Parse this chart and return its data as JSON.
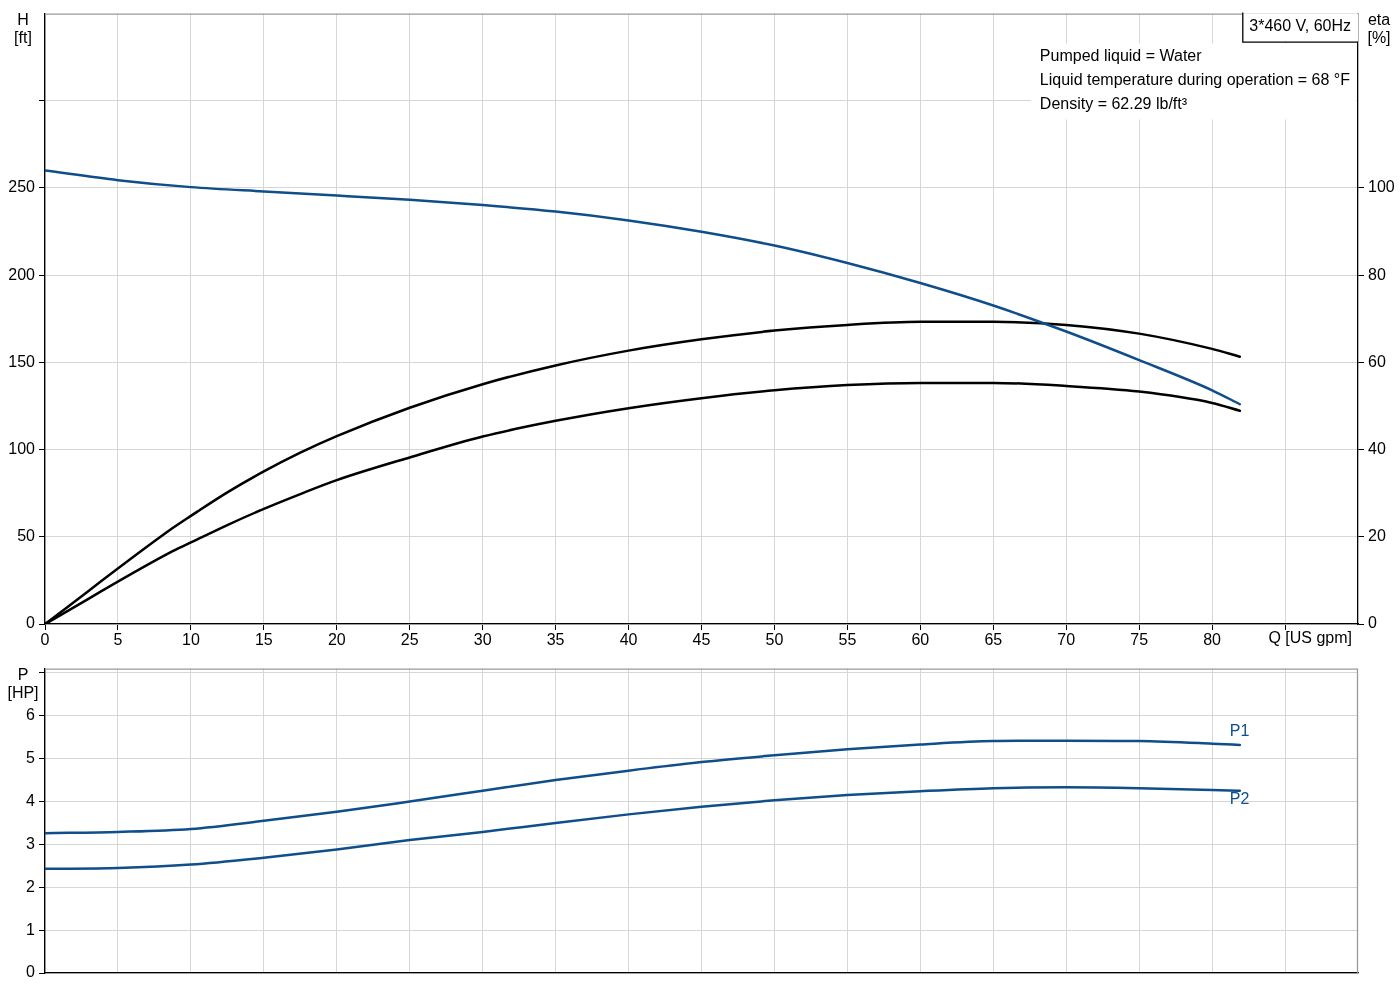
{
  "chart_data": [
    {
      "type": "line",
      "title": "3*460 V, 60Hz",
      "xlabel": "Q [US gpm]",
      "ylabel": "H [ft]",
      "y2label": "eta [%]",
      "annotations": [
        "Pumped liquid = Water",
        "Liquid temperature during operation = 68 °F",
        "Density = 62.29 lb/ft³"
      ],
      "xlim": [
        0,
        90
      ],
      "xticks": [
        0,
        5,
        10,
        15,
        20,
        25,
        30,
        35,
        40,
        45,
        50,
        55,
        60,
        65,
        70,
        75,
        80,
        {
          "value": 85,
          "label": null
        }
      ],
      "ylim": [
        0,
        350
      ],
      "yticks": [
        0,
        50,
        100,
        150,
        200,
        250,
        {
          "value": 300,
          "label": null
        }
      ],
      "y2lim": [
        0,
        140
      ],
      "y2ticks": [
        0,
        20,
        40,
        60,
        80,
        100
      ],
      "grid": true,
      "legend": false,
      "marker": "none",
      "series": [
        {
          "color": "#0f4e8a",
          "x": [
            0,
            5,
            10,
            15,
            20,
            25,
            30,
            35,
            40,
            45,
            50,
            55,
            60,
            65,
            70,
            75,
            80,
            81.9
          ],
          "values": [
            260,
            254.5,
            250.5,
            248,
            245.7,
            243.2,
            240.2,
            236.5,
            231.4,
            224.9,
            217,
            207,
            195.5,
            182.6,
            167.7,
            151.3,
            134,
            126
          ]
        },
        {
          "color": "#000000",
          "axis": "y2",
          "x": [
            0,
            8.75,
            10,
            12.5,
            15,
            17.5,
            20,
            25,
            30,
            35,
            40,
            45,
            50,
            55,
            60,
            65,
            70,
            75,
            80,
            81.9
          ],
          "values": [
            0,
            22.0,
            24.8,
            30.2,
            35.0,
            39.3,
            43.1,
            49.6,
            55.0,
            59.3,
            62.7,
            65.3,
            67.3,
            68.6,
            69.3,
            69.3,
            68.6,
            66.6,
            63.1,
            61.3
          ]
        },
        {
          "color": "#000000",
          "axis": "y2",
          "x": [
            0,
            8.75,
            10,
            12.5,
            15,
            17.5,
            20,
            25,
            30,
            35,
            40,
            45,
            50,
            55,
            60,
            65,
            70,
            75,
            80,
            81.9
          ],
          "values": [
            0,
            16.7,
            18.7,
            22.7,
            26.4,
            29.8,
            33.0,
            38.2,
            43.0,
            46.6,
            49.5,
            51.8,
            53.6,
            54.8,
            55.3,
            55.3,
            54.6,
            53.3,
            50.7,
            48.9
          ]
        }
      ]
    },
    {
      "type": "line",
      "ylabel": "P [HP]",
      "xlim": [
        0,
        90
      ],
      "xticks": [
        0,
        5,
        10,
        15,
        20,
        25,
        30,
        35,
        40,
        45,
        50,
        55,
        60,
        65,
        70,
        75,
        80,
        85
      ],
      "ylim": [
        0,
        7.1
      ],
      "yticks": [
        0,
        1,
        2,
        3,
        4,
        5,
        6,
        {
          "value": 7,
          "label": null
        }
      ],
      "tick_labels": "y",
      "grid": true,
      "legend": false,
      "marker": "none",
      "series": [
        {
          "name": "P1",
          "color": "#0f4e8a",
          "x": [
            0,
            5,
            10,
            15,
            20,
            25,
            30,
            35,
            40,
            45,
            50,
            55,
            60,
            65,
            70,
            75,
            80,
            81.9
          ],
          "values": [
            3.26,
            3.29,
            3.36,
            3.55,
            3.76,
            4.0,
            4.25,
            4.5,
            4.72,
            4.92,
            5.08,
            5.22,
            5.33,
            5.41,
            5.42,
            5.41,
            5.35,
            5.32
          ]
        },
        {
          "name": "P2",
          "color": "#0f4e8a",
          "x": [
            0,
            5,
            10,
            15,
            20,
            25,
            30,
            35,
            40,
            45,
            50,
            55,
            60,
            65,
            70,
            75,
            80,
            81.9
          ],
          "values": [
            2.43,
            2.45,
            2.53,
            2.69,
            2.88,
            3.1,
            3.29,
            3.5,
            3.7,
            3.88,
            4.03,
            4.15,
            4.24,
            4.31,
            4.33,
            4.31,
            4.27,
            4.25
          ]
        }
      ]
    }
  ]
}
